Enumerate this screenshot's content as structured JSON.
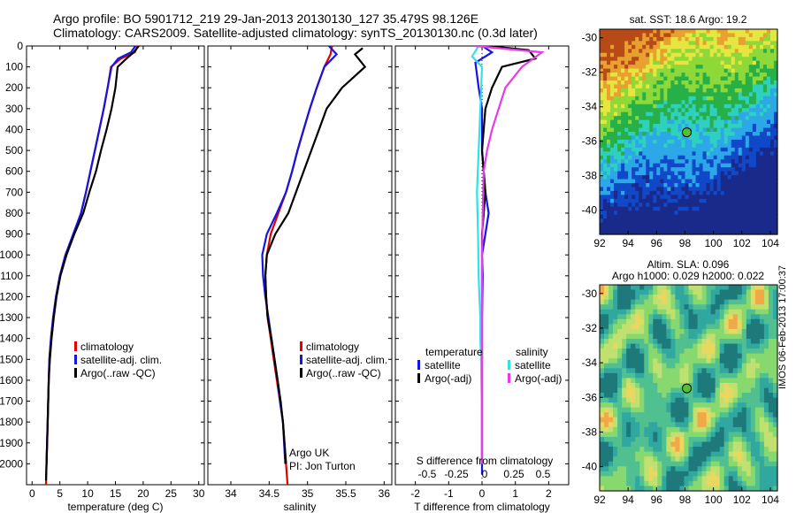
{
  "header": {
    "line1": "Argo profile: BO 5901712_219 29-Jan-2013 20130130_127 35.479S 98.126E",
    "line2": "Climatology: CARS2009. Satellite-adjusted climatology: synTS_20130130.nc (0.3d later)"
  },
  "colors": {
    "climatology": "#e00000",
    "satellite": "#1414e6",
    "argo": "#000000",
    "satellite_s": "#33e0e8",
    "argo_s": "#e63ce6",
    "marker": "#55c030"
  },
  "chart_data": [
    {
      "type": "line",
      "panel": "temperature",
      "xlabel": "temperature (deg C)",
      "ylim": [
        2100,
        0
      ],
      "xlim": [
        -1,
        31
      ],
      "xticks": [
        0,
        5,
        10,
        15,
        20,
        25,
        30
      ],
      "yticks": [
        0,
        100,
        200,
        300,
        400,
        500,
        600,
        700,
        800,
        900,
        1000,
        1100,
        1200,
        1300,
        1400,
        1500,
        1600,
        1700,
        1800,
        1900,
        2000
      ],
      "legend": [
        "climatology",
        "satellite-adj. clim.",
        "Argo(..raw -QC)"
      ],
      "series": [
        {
          "name": "climatology",
          "color_key": "climatology",
          "x": [
            19.0,
            18.5,
            16.0,
            14.2,
            13.6,
            12.9,
            12.1,
            11.3,
            10.5,
            9.7,
            8.8,
            7.5,
            6.0,
            5.0,
            4.3,
            3.8,
            3.4,
            3.1,
            3.0,
            2.8,
            2.6,
            2.5
          ],
          "y": [
            0,
            30,
            60,
            100,
            200,
            300,
            400,
            500,
            600,
            700,
            800,
            900,
            1000,
            1100,
            1200,
            1300,
            1400,
            1500,
            1600,
            1800,
            2000,
            2100
          ]
        },
        {
          "name": "satellite-adj. clim.",
          "color_key": "satellite",
          "x": [
            18.6,
            17.8,
            15.5,
            14.3,
            13.6,
            12.9,
            12.1,
            11.3,
            10.5,
            9.7,
            8.8,
            7.4,
            6.0,
            5.0,
            4.3,
            3.8,
            3.4,
            3.1,
            3.0,
            2.8,
            2.6
          ],
          "y": [
            0,
            30,
            60,
            100,
            200,
            300,
            400,
            500,
            600,
            700,
            800,
            900,
            1000,
            1100,
            1200,
            1300,
            1400,
            1500,
            1600,
            1800,
            2000
          ]
        },
        {
          "name": "Argo(..raw -QC)",
          "color_key": "argo",
          "x": [
            19.2,
            18.3,
            17.0,
            15.4,
            15.0,
            14.3,
            13.4,
            12.4,
            11.5,
            10.3,
            9.2,
            7.6,
            6.2,
            5.1,
            4.4,
            3.9,
            3.5,
            3.2,
            3.0,
            2.8,
            2.6,
            2.5
          ],
          "y": [
            0,
            30,
            60,
            100,
            200,
            300,
            400,
            500,
            600,
            700,
            800,
            900,
            1000,
            1100,
            1200,
            1300,
            1400,
            1500,
            1600,
            1800,
            2000,
            2080
          ]
        }
      ]
    },
    {
      "type": "line",
      "panel": "salinity",
      "xlabel": "salinity",
      "ylim": [
        2100,
        0
      ],
      "xlim": [
        33.7,
        36.1
      ],
      "xticks": [
        34,
        34.5,
        35,
        35.5,
        36
      ],
      "legend": [
        "climatology",
        "satellite-adj. clim.",
        "Argo(..raw -QC)"
      ],
      "annotation": [
        "Argo UK",
        "PI: Jon Turton"
      ],
      "series": [
        {
          "name": "climatology",
          "color_key": "climatology",
          "x": [
            35.32,
            35.3,
            35.22,
            35.12,
            35.03,
            34.95,
            34.87,
            34.8,
            34.72,
            34.62,
            34.52,
            34.47,
            34.45,
            34.46,
            34.48,
            34.52,
            34.56,
            34.6,
            34.64,
            34.68,
            34.72,
            34.74
          ],
          "y": [
            0,
            40,
            100,
            200,
            300,
            400,
            500,
            600,
            700,
            800,
            900,
            1000,
            1100,
            1200,
            1300,
            1400,
            1500,
            1600,
            1700,
            1800,
            2000,
            2100
          ]
        },
        {
          "name": "satellite-adj. clim.",
          "color_key": "satellite",
          "x": [
            35.28,
            35.38,
            35.22,
            35.12,
            35.03,
            34.95,
            34.87,
            34.8,
            34.72,
            34.6,
            34.47,
            34.41,
            34.42,
            34.45,
            34.49,
            34.53,
            34.57,
            34.61,
            34.64,
            34.68,
            34.71
          ],
          "y": [
            0,
            40,
            100,
            200,
            300,
            400,
            500,
            600,
            700,
            800,
            900,
            1000,
            1100,
            1200,
            1300,
            1400,
            1500,
            1600,
            1700,
            1800,
            2000
          ]
        },
        {
          "name": "Argo(..raw -QC)",
          "color_key": "argo",
          "x": [
            35.72,
            35.62,
            35.75,
            35.45,
            35.25,
            35.15,
            35.05,
            34.95,
            34.85,
            34.75,
            34.58,
            34.47,
            34.45,
            34.46,
            34.48,
            34.53,
            34.57,
            34.61,
            34.65,
            34.68,
            34.72
          ],
          "y": [
            10,
            40,
            100,
            200,
            300,
            400,
            500,
            600,
            700,
            800,
            900,
            1000,
            1100,
            1200,
            1300,
            1400,
            1500,
            1600,
            1700,
            1800,
            2000
          ]
        }
      ]
    },
    {
      "type": "line",
      "panel": "difference",
      "xlabel": "T difference from climatology",
      "xlabel_top": "S difference from climatology",
      "ylim": [
        2100,
        0
      ],
      "xlim": [
        -2.6,
        2.6
      ],
      "xticks": [
        -2,
        -1,
        0,
        1,
        2
      ],
      "xtick_labels": [
        "-2",
        "-1",
        "0",
        "1",
        "2"
      ],
      "s_ticks": [
        "-0.5",
        "-0.25",
        "0",
        "0.25",
        "0.5"
      ],
      "legend_headers": [
        "temperature",
        "salinity"
      ],
      "legend": [
        "satellite",
        "Argo(-adj)",
        "satellite",
        "Argo(-adj)"
      ],
      "series": [
        {
          "name": "satellite",
          "color_key": "satellite",
          "x": [
            0.0,
            0.3,
            -0.2,
            -0.1,
            0.0,
            0.0,
            0.0,
            0.05,
            0.1,
            0.2,
            0.1,
            0.0,
            0.02,
            0.0,
            0.0,
            0.0,
            0.0,
            0.0,
            0.0
          ],
          "y": [
            0,
            30,
            80,
            200,
            300,
            400,
            500,
            600,
            700,
            800,
            900,
            1000,
            1100,
            1300,
            1500,
            1700,
            1900,
            2000,
            2050
          ]
        },
        {
          "name": "Argo(-adj)",
          "color_key": "argo",
          "x": [
            0.2,
            1.4,
            1.6,
            0.6,
            0.3,
            0.1,
            0.05,
            0.0,
            0.05,
            0.1,
            0.05,
            0.0,
            0.0,
            0.0,
            0.0,
            0.0,
            0.0,
            0.0
          ],
          "y": [
            0,
            20,
            60,
            100,
            200,
            300,
            400,
            500,
            600,
            700,
            800,
            900,
            1000,
            1200,
            1400,
            1600,
            1800,
            2000
          ]
        },
        {
          "name": "satellite",
          "color_key": "satellite_s",
          "x": [
            -0.1,
            -0.3,
            0.0,
            -0.05,
            -0.1,
            -0.15,
            -0.12,
            -0.1,
            -0.08,
            -0.05,
            -0.05,
            -0.03,
            -0.02,
            0.0,
            0.0
          ],
          "y": [
            0,
            50,
            100,
            300,
            500,
            700,
            900,
            1100,
            1200,
            1300,
            1400,
            1500,
            1600,
            1800,
            2000
          ]
        },
        {
          "name": "Argo(-adj)",
          "color_key": "argo_s",
          "x": [
            -0.2,
            1.8,
            1.2,
            0.7,
            0.5,
            0.3,
            0.15,
            0.05,
            0.02,
            0.0,
            0.0,
            0.0,
            0.0,
            0.0
          ],
          "y": [
            0,
            30,
            100,
            200,
            300,
            400,
            500,
            600,
            800,
            1000,
            1200,
            1400,
            1700,
            2000
          ]
        }
      ]
    },
    {
      "type": "heatmap",
      "panel": "sst_map",
      "title": "sat. SST: 18.6  Argo: 19.2",
      "xlim": [
        92,
        104.5
      ],
      "ylim": [
        -41.4,
        -29.5
      ],
      "xticks": [
        92,
        94,
        96,
        98,
        100,
        102,
        104
      ],
      "yticks": [
        -30,
        -32,
        -34,
        -36,
        -38,
        -40
      ],
      "marker": {
        "lon": 98.126,
        "lat": -35.479
      }
    },
    {
      "type": "heatmap",
      "panel": "sla_map",
      "title": "Altim. SLA: 0.096",
      "subtitle": "Argo h1000: 0.029 h2000: 0.022",
      "xlim": [
        92,
        104.5
      ],
      "ylim": [
        -41.4,
        -29.5
      ],
      "xticks": [
        92,
        94,
        96,
        98,
        100,
        102,
        104
      ],
      "yticks": [
        -30,
        -32,
        -34,
        -36,
        -38,
        -40
      ],
      "marker": {
        "lon": 98.126,
        "lat": -35.479
      }
    }
  ],
  "side_label": "IMOS 06-Feb-2013 17:00:37"
}
